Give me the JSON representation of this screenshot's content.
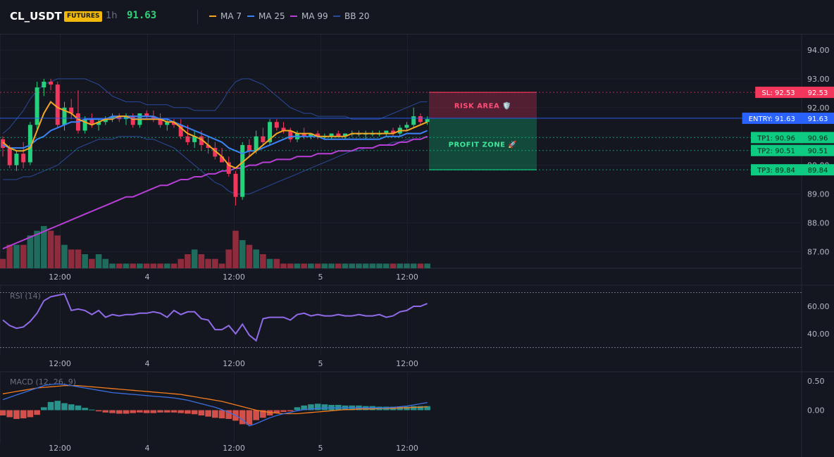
{
  "header": {
    "symbol": "CL_USDT",
    "badge": "FUTURES",
    "timeframe": "1h",
    "last_price": "91.63",
    "indicators": [
      {
        "label": "MA 7",
        "color": "#f5a623"
      },
      {
        "label": "MA 25",
        "color": "#3b82f6"
      },
      {
        "label": "MA 99",
        "color": "#b83fd6"
      },
      {
        "label": "BB 20",
        "color": "#2a4a9a"
      }
    ]
  },
  "colors": {
    "up": "#26d07c",
    "down": "#f2365c",
    "vol_up": "#1f6b5c",
    "vol_down": "#8e2b3c"
  },
  "chart_data": [
    {
      "type": "candlestick",
      "y_ticks": [
        "94.00",
        "93.00",
        "92.00",
        "91.00",
        "90.00",
        "89.00",
        "88.00",
        "87.00"
      ],
      "x_ticks": [
        "12:00",
        "4",
        "12:00",
        "5",
        "12:00"
      ],
      "ylim": [
        86.3,
        94.5
      ],
      "ohlc": [
        [
          90.9,
          91.0,
          90.3,
          90.6
        ],
        [
          90.6,
          90.7,
          89.9,
          90.0
        ],
        [
          90.0,
          90.5,
          89.8,
          90.4
        ],
        [
          90.4,
          90.8,
          89.9,
          90.1
        ],
        [
          90.1,
          91.5,
          90.0,
          91.4
        ],
        [
          91.4,
          92.9,
          91.2,
          92.7
        ],
        [
          92.7,
          93.0,
          92.4,
          92.9
        ],
        [
          92.9,
          93.0,
          92.6,
          92.8
        ],
        [
          92.8,
          92.9,
          91.3,
          91.4
        ],
        [
          91.4,
          92.2,
          91.2,
          92.0
        ],
        [
          92.0,
          92.3,
          91.6,
          91.8
        ],
        [
          91.8,
          92.6,
          91.1,
          91.2
        ],
        [
          91.2,
          91.7,
          91.1,
          91.6
        ],
        [
          91.6,
          91.8,
          91.3,
          91.4
        ],
        [
          91.4,
          91.6,
          91.2,
          91.5
        ],
        [
          91.5,
          91.7,
          91.4,
          91.6
        ],
        [
          91.6,
          91.8,
          91.5,
          91.7
        ],
        [
          91.7,
          91.8,
          91.5,
          91.6
        ],
        [
          91.6,
          91.8,
          91.4,
          91.7
        ],
        [
          91.7,
          91.8,
          91.3,
          91.4
        ],
        [
          91.4,
          91.8,
          91.3,
          91.8
        ],
        [
          91.8,
          91.9,
          91.6,
          91.7
        ],
        [
          91.7,
          91.9,
          91.5,
          91.6
        ],
        [
          91.6,
          91.8,
          91.3,
          91.4
        ],
        [
          91.4,
          91.6,
          91.2,
          91.5
        ],
        [
          91.5,
          91.6,
          91.3,
          91.4
        ],
        [
          91.4,
          91.6,
          90.9,
          91.0
        ],
        [
          91.0,
          91.4,
          90.7,
          90.8
        ],
        [
          90.8,
          91.2,
          90.6,
          91.0
        ],
        [
          91.0,
          91.2,
          90.5,
          90.7
        ],
        [
          90.7,
          91.0,
          90.4,
          90.6
        ],
        [
          90.6,
          90.8,
          90.2,
          90.3
        ],
        [
          90.3,
          90.6,
          90.1,
          90.1
        ],
        [
          90.1,
          90.3,
          89.6,
          89.7
        ],
        [
          89.7,
          89.8,
          88.6,
          88.9
        ],
        [
          88.9,
          90.8,
          88.8,
          90.7
        ],
        [
          90.7,
          90.9,
          90.3,
          90.5
        ],
        [
          90.5,
          91.2,
          90.4,
          91.0
        ],
        [
          91.0,
          91.3,
          90.7,
          90.8
        ],
        [
          90.8,
          91.6,
          90.7,
          91.5
        ],
        [
          91.5,
          91.6,
          91.2,
          91.3
        ],
        [
          91.3,
          91.5,
          91.1,
          91.2
        ],
        [
          91.2,
          91.3,
          90.8,
          90.9
        ],
        [
          90.9,
          91.2,
          90.8,
          91.1
        ],
        [
          91.1,
          91.3,
          90.9,
          91.0
        ],
        [
          91.0,
          91.1,
          90.9,
          91.1
        ],
        [
          91.1,
          91.2,
          90.9,
          91.0
        ],
        [
          91.0,
          91.1,
          90.9,
          91.0
        ],
        [
          91.0,
          91.1,
          90.9,
          91.1
        ],
        [
          91.1,
          91.2,
          91.0,
          91.0
        ],
        [
          91.0,
          91.1,
          90.9,
          91.1
        ],
        [
          91.1,
          91.2,
          91.0,
          91.1
        ],
        [
          91.1,
          91.2,
          91.0,
          91.1
        ],
        [
          91.1,
          91.2,
          90.9,
          91.1
        ],
        [
          91.1,
          91.2,
          91.0,
          91.1
        ],
        [
          91.1,
          91.2,
          91.0,
          91.1
        ],
        [
          91.1,
          91.2,
          91.0,
          91.2
        ],
        [
          91.2,
          91.3,
          91.0,
          91.1
        ],
        [
          91.1,
          91.4,
          91.0,
          91.3
        ],
        [
          91.3,
          91.5,
          91.2,
          91.4
        ],
        [
          91.4,
          92.0,
          91.3,
          91.7
        ],
        [
          91.7,
          91.8,
          91.4,
          91.5
        ],
        [
          91.5,
          91.7,
          91.4,
          91.6
        ]
      ],
      "volume": [
        2,
        5,
        5,
        5,
        7,
        8,
        9,
        8,
        7,
        5,
        4,
        4,
        3,
        2,
        3,
        2,
        1,
        1,
        1,
        1,
        1,
        1,
        1,
        1,
        1,
        1,
        2,
        3,
        4,
        3,
        2,
        2,
        1,
        4,
        8,
        6,
        5,
        4,
        3,
        2,
        2,
        1,
        1,
        1,
        1,
        1,
        1,
        1,
        1,
        1,
        1,
        1,
        1,
        1,
        1,
        1,
        1,
        1,
        1,
        1,
        1,
        1,
        1
      ],
      "ma7": [
        90.8,
        90.6,
        90.5,
        90.5,
        90.6,
        91.2,
        91.8,
        92.2,
        92.0,
        91.9,
        91.8,
        91.6,
        91.5,
        91.4,
        91.5,
        91.6,
        91.6,
        91.7,
        91.7,
        91.6,
        91.6,
        91.6,
        91.6,
        91.6,
        91.5,
        91.5,
        91.3,
        91.1,
        91.0,
        90.9,
        90.7,
        90.5,
        90.3,
        90.0,
        89.9,
        90.1,
        90.3,
        90.5,
        90.7,
        90.9,
        91.1,
        91.2,
        91.2,
        91.1,
        91.1,
        91.1,
        91.0,
        91.0,
        91.0,
        91.0,
        91.0,
        91.1,
        91.1,
        91.1,
        91.1,
        91.1,
        91.1,
        91.1,
        91.2,
        91.2,
        91.3,
        91.4,
        91.5
      ],
      "ma25": [
        90.7,
        90.6,
        90.6,
        90.6,
        90.7,
        90.9,
        91.0,
        91.2,
        91.3,
        91.4,
        91.5,
        91.5,
        91.6,
        91.6,
        91.6,
        91.6,
        91.7,
        91.7,
        91.7,
        91.7,
        91.7,
        91.7,
        91.7,
        91.6,
        91.6,
        91.5,
        91.4,
        91.3,
        91.2,
        91.1,
        91.0,
        90.9,
        90.8,
        90.6,
        90.5,
        90.4,
        90.5,
        90.5,
        90.6,
        90.7,
        90.8,
        90.9,
        91.0,
        91.0,
        91.0,
        91.0,
        91.0,
        90.9,
        90.9,
        90.9,
        90.9,
        90.9,
        90.9,
        90.9,
        90.9,
        90.9,
        91.0,
        91.0,
        91.0,
        91.1,
        91.1,
        91.1,
        91.2
      ],
      "ma99": [
        87.1,
        87.2,
        87.3,
        87.4,
        87.5,
        87.6,
        87.7,
        87.8,
        87.9,
        88.0,
        88.1,
        88.2,
        88.3,
        88.4,
        88.5,
        88.6,
        88.7,
        88.8,
        88.9,
        88.9,
        89.0,
        89.1,
        89.2,
        89.3,
        89.3,
        89.4,
        89.5,
        89.5,
        89.6,
        89.6,
        89.7,
        89.7,
        89.8,
        89.8,
        89.9,
        89.9,
        90.0,
        90.0,
        90.1,
        90.1,
        90.2,
        90.2,
        90.2,
        90.3,
        90.3,
        90.3,
        90.4,
        90.4,
        90.4,
        90.5,
        90.5,
        90.5,
        90.6,
        90.6,
        90.6,
        90.7,
        90.7,
        90.7,
        90.8,
        90.8,
        90.9,
        90.9,
        91.0
      ],
      "bb_upper": [
        91.1,
        91.3,
        91.6,
        91.9,
        92.3,
        92.6,
        92.8,
        92.9,
        93.0,
        93.0,
        93.0,
        93.0,
        93.0,
        92.9,
        92.8,
        92.6,
        92.4,
        92.3,
        92.2,
        92.2,
        92.2,
        92.1,
        92.1,
        92.1,
        92.1,
        92.0,
        92.0,
        92.0,
        91.9,
        91.9,
        91.9,
        91.9,
        92.2,
        92.6,
        92.9,
        93.0,
        93.0,
        92.9,
        92.8,
        92.6,
        92.4,
        92.2,
        92.0,
        91.9,
        91.8,
        91.8,
        91.7,
        91.7,
        91.7,
        91.7,
        91.7,
        91.6,
        91.6,
        91.6,
        91.6,
        91.6,
        91.7,
        91.8,
        91.9,
        92.0,
        92.1,
        92.2,
        92.2
      ],
      "bb_lower": [
        89.5,
        89.5,
        89.5,
        89.6,
        89.6,
        89.7,
        89.8,
        89.9,
        90.0,
        90.2,
        90.4,
        90.6,
        90.7,
        90.8,
        90.9,
        90.9,
        90.9,
        91.0,
        91.0,
        91.0,
        91.0,
        90.9,
        90.9,
        90.8,
        90.7,
        90.6,
        90.4,
        90.2,
        90.0,
        89.8,
        89.6,
        89.4,
        89.3,
        89.1,
        89.0,
        89.0,
        89.0,
        89.1,
        89.2,
        89.3,
        89.4,
        89.5,
        89.6,
        89.7,
        89.8,
        89.9,
        90.0,
        90.1,
        90.2,
        90.3,
        90.4,
        90.5,
        90.5,
        90.6,
        90.6,
        90.7,
        90.7,
        90.8,
        90.8,
        90.9,
        90.9,
        90.9,
        91.0
      ],
      "levels": [
        {
          "label": "SL: 92.53",
          "value": 92.53,
          "price": "92.53",
          "color": "#f2365c"
        },
        {
          "label": "ENTRY: 91.63",
          "value": 91.63,
          "price": "91.63",
          "color": "#2962ff"
        },
        {
          "label": "TP1: 90.96",
          "value": 90.96,
          "price": "90.96",
          "color": "#0ecb81"
        },
        {
          "label": "TP2: 90.51",
          "value": 90.51,
          "price": "90.51",
          "color": "#0ecb81"
        },
        {
          "label": "TP3: 89.84",
          "value": 89.84,
          "price": "89.84",
          "color": "#0ecb81"
        }
      ],
      "zones": [
        {
          "label": "RISK AREA 🛡️",
          "from": 91.63,
          "to": 92.53,
          "color": "#f2365c"
        },
        {
          "label": "PROFIT ZONE 🚀",
          "from": 89.84,
          "to": 91.63,
          "color": "#0ecb81"
        }
      ]
    },
    {
      "type": "line",
      "title": "RSI (14)",
      "y_ticks": [
        "60.00",
        "40.00"
      ],
      "ylim": [
        28,
        72
      ],
      "bands": [
        70,
        30
      ],
      "values": [
        50,
        46,
        44,
        45,
        49,
        55,
        64,
        67,
        68,
        69,
        57,
        58,
        57,
        54,
        57,
        52,
        54,
        53,
        54,
        54,
        55,
        55,
        56,
        55,
        52,
        57,
        54,
        56,
        56,
        51,
        50,
        43,
        43,
        46,
        40,
        47,
        39,
        35,
        51,
        52,
        52,
        52,
        50,
        54,
        55,
        53,
        54,
        53,
        53,
        54,
        53,
        53,
        54,
        53,
        53,
        54,
        52,
        53,
        56,
        57,
        60,
        60,
        62
      ]
    },
    {
      "type": "macd",
      "title": "MACD (12, 26, 9)",
      "y_ticks": [
        "0.50",
        "0.00"
      ],
      "ylim": [
        -0.35,
        0.65
      ],
      "histogram": [
        -0.09,
        -0.12,
        -0.15,
        -0.14,
        -0.12,
        -0.08,
        0.05,
        0.14,
        0.16,
        0.12,
        0.1,
        0.08,
        0.04,
        0.01,
        -0.02,
        -0.04,
        -0.05,
        -0.06,
        -0.06,
        -0.05,
        -0.04,
        -0.05,
        -0.05,
        -0.04,
        -0.04,
        -0.04,
        -0.05,
        -0.06,
        -0.07,
        -0.09,
        -0.11,
        -0.13,
        -0.14,
        -0.15,
        -0.18,
        -0.24,
        -0.25,
        -0.17,
        -0.13,
        -0.09,
        -0.05,
        -0.03,
        -0.02,
        0.05,
        0.08,
        0.1,
        0.11,
        0.1,
        0.09,
        0.09,
        0.08,
        0.08,
        0.08,
        0.07,
        0.07,
        0.06,
        0.06,
        0.06,
        0.06,
        0.06,
        0.07,
        0.07,
        0.07
      ],
      "macd": [
        0.18,
        0.22,
        0.26,
        0.3,
        0.34,
        0.38,
        0.42,
        0.44,
        0.45,
        0.44,
        0.42,
        0.4,
        0.38,
        0.36,
        0.34,
        0.32,
        0.3,
        0.29,
        0.28,
        0.27,
        0.26,
        0.25,
        0.24,
        0.23,
        0.22,
        0.21,
        0.19,
        0.17,
        0.14,
        0.11,
        0.08,
        0.05,
        0.01,
        -0.04,
        -0.09,
        -0.16,
        -0.27,
        -0.23,
        -0.18,
        -0.13,
        -0.09,
        -0.06,
        -0.04,
        -0.01,
        0.01,
        0.02,
        0.03,
        0.04,
        0.04,
        0.04,
        0.04,
        0.04,
        0.04,
        0.04,
        0.04,
        0.04,
        0.04,
        0.05,
        0.06,
        0.07,
        0.09,
        0.11,
        0.13
      ],
      "signal": [
        0.28,
        0.3,
        0.32,
        0.34,
        0.36,
        0.38,
        0.39,
        0.4,
        0.41,
        0.42,
        0.42,
        0.42,
        0.41,
        0.4,
        0.39,
        0.38,
        0.37,
        0.36,
        0.35,
        0.34,
        0.33,
        0.32,
        0.31,
        0.3,
        0.29,
        0.28,
        0.27,
        0.25,
        0.23,
        0.21,
        0.19,
        0.17,
        0.15,
        0.12,
        0.09,
        0.06,
        0.03,
        0.0,
        -0.02,
        -0.04,
        -0.05,
        -0.06,
        -0.06,
        -0.06,
        -0.05,
        -0.04,
        -0.03,
        -0.02,
        -0.01,
        0.0,
        0.01,
        0.01,
        0.02,
        0.02,
        0.02,
        0.03,
        0.03,
        0.03,
        0.04,
        0.04,
        0.05,
        0.05,
        0.06
      ]
    }
  ]
}
